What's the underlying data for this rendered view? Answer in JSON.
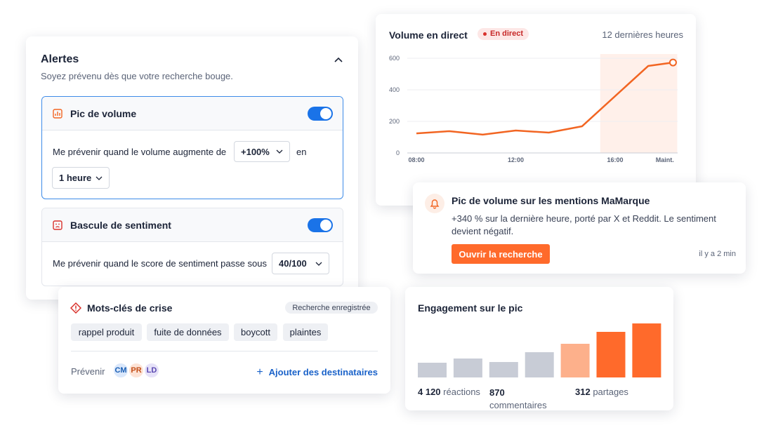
{
  "alerts": {
    "title": "Alertes",
    "subtitle": "Soyez prévenu dès que votre recherche bouge.",
    "rules": [
      {
        "title": "Pic de volume",
        "enabled": true,
        "condition": "Me prévenir quand le volume augmente de",
        "threshold": "+100%",
        "connector": "en",
        "period": "1 heure"
      },
      {
        "title": "Bascule de sentiment",
        "enabled": true,
        "condition": "Me prévenir quand le score de sentiment passe sous",
        "threshold": "40/100"
      }
    ]
  },
  "notification": {
    "title": "Pic de volume sur les mentions MaMarque",
    "body": "+340 % sur la dernière heure, porté par X et Reddit. Le sentiment devient négatif.",
    "button": "Ouvrir la recherche",
    "time": "il y a 2 min"
  },
  "crisis": {
    "title": "Mots-clés de crise",
    "badge": "Recherche enregistrée",
    "keywords": [
      "rappel produit",
      "fuite de données",
      "boycott",
      "plaintes"
    ],
    "notify_label": "Prévenir",
    "recipients": [
      "CM",
      "PR",
      "LD"
    ],
    "add_label": "Ajouter des destinataires"
  },
  "chart_data": [
    {
      "type": "line",
      "title": "Volume en direct",
      "badge": "En direct",
      "subtitle": "12 dernières heures",
      "x": [
        8,
        9.33,
        10.67,
        12,
        13.33,
        14.67,
        17.33,
        18.33
      ],
      "values": [
        124,
        138,
        116,
        142,
        129,
        169,
        551,
        573
      ],
      "color": "#f26522",
      "xlim": [
        8,
        18.5
      ],
      "xticks": [
        {
          "value": 8,
          "label": "08:00"
        },
        {
          "value": 12,
          "label": "12:00"
        },
        {
          "value": 16,
          "label": "16:00"
        },
        {
          "value": 18,
          "label": "Maint."
        }
      ],
      "ylim": [
        0,
        600
      ],
      "yticks": [
        0,
        200,
        400,
        600
      ],
      "grid": true,
      "highlight_xlim": [
        15.4,
        18.5
      ]
    },
    {
      "type": "bar",
      "title": "Engagement sur le pic",
      "values": [
        21,
        27,
        22,
        36,
        48,
        65,
        77
      ],
      "colors": [
        "#c8ccd6",
        "#c8ccd6",
        "#c8ccd6",
        "#c8ccd6",
        "#fdb08b",
        "#ff6a2b",
        "#ff6a2b"
      ],
      "ylim": [
        0,
        80
      ],
      "stats": [
        {
          "count": "4 120",
          "label": "réactions"
        },
        {
          "count": "870",
          "label": "commentaires"
        },
        {
          "count": "312",
          "label": "partages"
        }
      ]
    }
  ]
}
